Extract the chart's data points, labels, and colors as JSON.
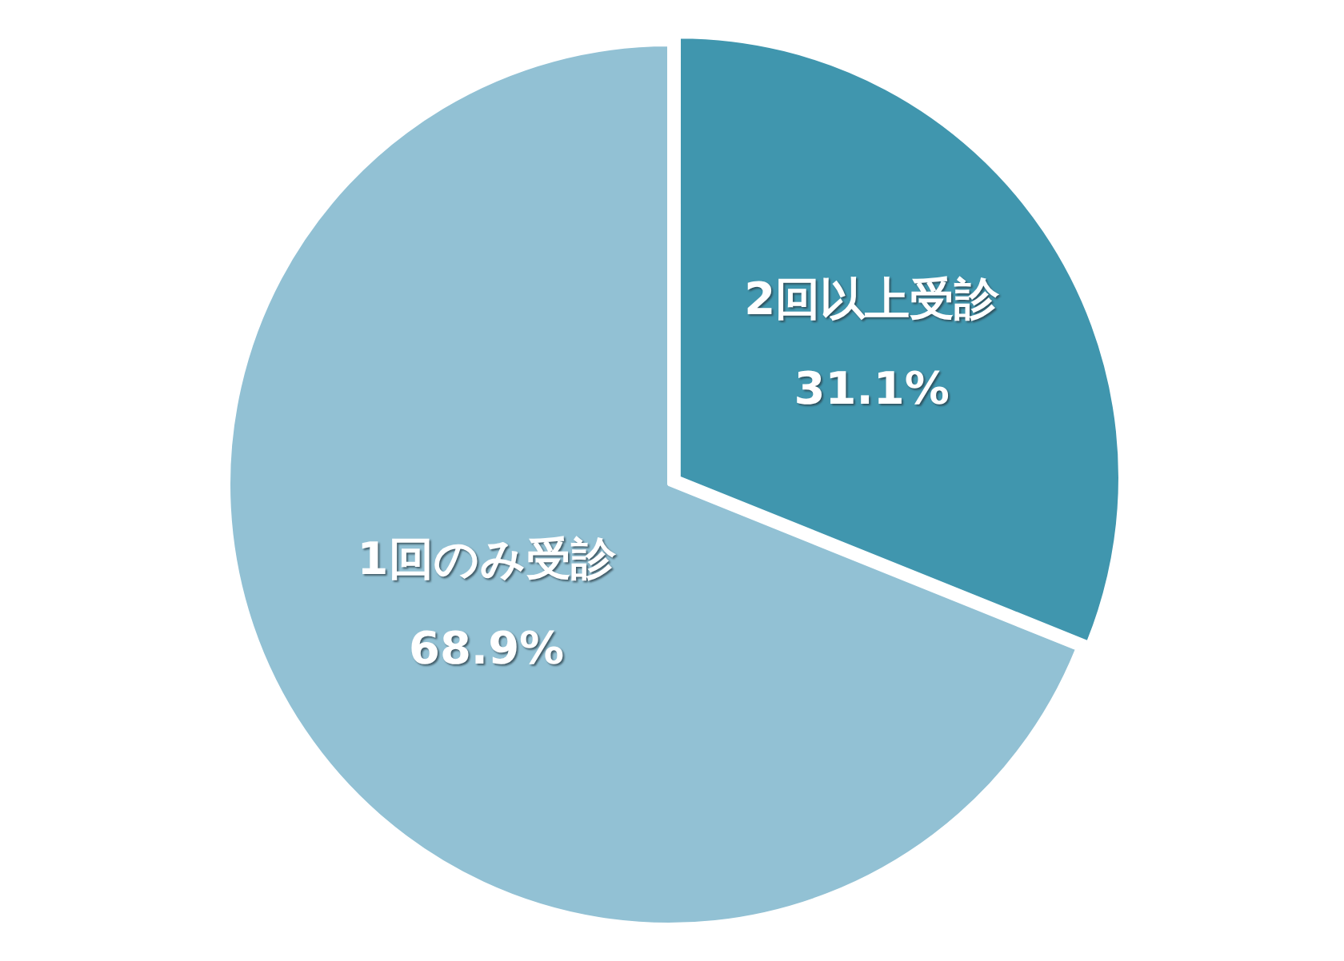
{
  "chart_data": {
    "type": "pie",
    "categories": [
      "2回以上受診",
      "1回のみ受診"
    ],
    "values": [
      31.1,
      68.9
    ],
    "colors": [
      "#4096ae",
      "#92c1d4"
    ],
    "value_labels": [
      "31.1%",
      "68.9%"
    ]
  }
}
